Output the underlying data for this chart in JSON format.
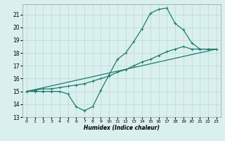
{
  "xlabel": "Humidex (Indice chaleur)",
  "xlim": [
    -0.5,
    23.5
  ],
  "ylim": [
    13.0,
    21.8
  ],
  "yticks": [
    13,
    14,
    15,
    16,
    17,
    18,
    19,
    20,
    21
  ],
  "xticks": [
    0,
    1,
    2,
    3,
    4,
    5,
    6,
    7,
    8,
    9,
    10,
    11,
    12,
    13,
    14,
    15,
    16,
    17,
    18,
    19,
    20,
    21,
    22,
    23
  ],
  "bg_color": "#daf0ee",
  "line_color": "#1e7b6e",
  "grid_color": "#b8d8d4",
  "series": [
    {
      "x": [
        0,
        1,
        2,
        3,
        4,
        5,
        6,
        7,
        8,
        9,
        10,
        11,
        12,
        13,
        14,
        15,
        16,
        17,
        18,
        19,
        20,
        21,
        22,
        23
      ],
      "y": [
        15.0,
        15.0,
        15.0,
        15.0,
        15.0,
        14.8,
        13.8,
        13.5,
        13.8,
        15.1,
        16.3,
        17.5,
        18.0,
        18.9,
        19.9,
        21.1,
        21.4,
        21.5,
        20.3,
        19.8,
        18.8,
        18.3,
        18.3,
        18.3
      ],
      "marker": true
    },
    {
      "x": [
        0,
        1,
        2,
        3,
        4,
        5,
        6,
        7,
        8,
        9,
        10,
        11,
        12,
        13,
        14,
        15,
        16,
        17,
        18,
        19,
        20,
        21,
        22,
        23
      ],
      "y": [
        15.0,
        15.1,
        15.2,
        15.2,
        15.3,
        15.4,
        15.5,
        15.6,
        15.8,
        16.0,
        16.2,
        16.5,
        16.7,
        17.0,
        17.3,
        17.5,
        17.8,
        18.1,
        18.3,
        18.5,
        18.3,
        18.3,
        18.3,
        18.3
      ],
      "marker": true
    },
    {
      "x": [
        0,
        23
      ],
      "y": [
        15.0,
        18.3
      ],
      "marker": false
    }
  ]
}
